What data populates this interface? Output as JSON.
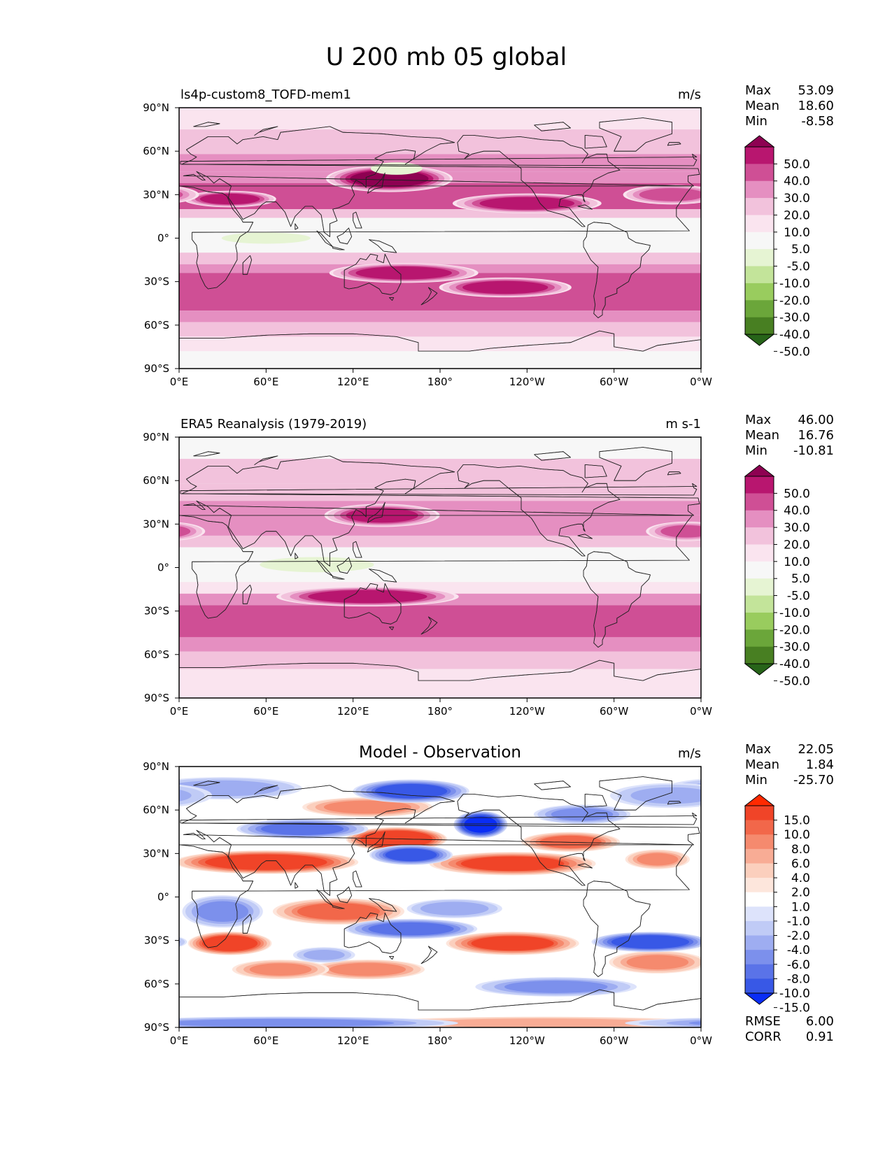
{
  "figure": {
    "title": "U 200 mb 05 global"
  },
  "panels": [
    {
      "id": "model",
      "left_title": "ls4p-custom8_TOFD-mem1",
      "center_title": "",
      "units": "m/s",
      "stats": [
        {
          "label": "Max",
          "value": "53.09"
        },
        {
          "label": "Mean",
          "value": "18.60"
        },
        {
          "label": "Min",
          "value": "-8.58"
        }
      ],
      "colorbar": {
        "labels": [
          "50.0",
          "40.0",
          "30.0",
          "20.0",
          "10.0",
          "5.0",
          "-5.0",
          "-10.0",
          "-20.0",
          "-30.0",
          "-40.0",
          "-50.0"
        ],
        "colors": [
          "#8e0152",
          "#b8166f",
          "#cf4f95",
          "#e58fc1",
          "#f2c2dc",
          "#fae4ef",
          "#f7f7f7",
          "#e6f4d3",
          "#c3e49a",
          "#99cc5e",
          "#6ba63a",
          "#487f22",
          "#276419"
        ],
        "extend": "both"
      },
      "footer": []
    },
    {
      "id": "obs",
      "left_title": "ERA5 Reanalysis (1979-2019)",
      "center_title": "",
      "units": "m s-1",
      "stats": [
        {
          "label": "Max",
          "value": "46.00"
        },
        {
          "label": "Mean",
          "value": "16.76"
        },
        {
          "label": "Min",
          "value": "-10.81"
        }
      ],
      "colorbar": {
        "labels": [
          "50.0",
          "40.0",
          "30.0",
          "20.0",
          "10.0",
          "5.0",
          "-5.0",
          "-10.0",
          "-20.0",
          "-30.0",
          "-40.0",
          "-50.0"
        ],
        "colors": [
          "#8e0152",
          "#b8166f",
          "#cf4f95",
          "#e58fc1",
          "#f2c2dc",
          "#fae4ef",
          "#f7f7f7",
          "#e6f4d3",
          "#c3e49a",
          "#99cc5e",
          "#6ba63a",
          "#487f22",
          "#276419"
        ],
        "extend": "both"
      },
      "footer": []
    },
    {
      "id": "diff",
      "left_title": "",
      "center_title": "Model - Observation",
      "units": "m/s",
      "stats": [
        {
          "label": "Max",
          "value": "22.05"
        },
        {
          "label": "Mean",
          "value": "1.84"
        },
        {
          "label": "Min",
          "value": "-25.70"
        }
      ],
      "colorbar": {
        "labels": [
          "15.0",
          "10.0",
          "8.0",
          "6.0",
          "4.0",
          "2.0",
          "1.0",
          "-1.0",
          "-2.0",
          "-4.0",
          "-6.0",
          "-8.0",
          "-10.0",
          "-15.0"
        ],
        "colors": [
          "#ff2a00",
          "#f04428",
          "#f2674a",
          "#f58a6e",
          "#f8ac95",
          "#fbcfbd",
          "#fde6dc",
          "#ffffff",
          "#dde3fb",
          "#c0cbf6",
          "#9eadf1",
          "#7c90ec",
          "#5a73e8",
          "#3858e6",
          "#0a2df5"
        ],
        "extend": "both"
      },
      "footer": [
        {
          "label": "RMSE",
          "value": "6.00"
        },
        {
          "label": "CORR",
          "value": "0.91"
        }
      ]
    }
  ],
  "chart_data": {
    "type": "heatmap",
    "title": "U 200 mb 05 global",
    "xlabel": "",
    "ylabel": "",
    "x_ticks": [
      "0°E",
      "60°E",
      "120°E",
      "180°",
      "120°W",
      "60°W",
      "0°W"
    ],
    "y_ticks": [
      "90°N",
      "60°N",
      "30°N",
      "0°",
      "30°S",
      "60°S",
      "90°S"
    ],
    "xlim": [
      0,
      360
    ],
    "ylim": [
      -90,
      90
    ],
    "panels": [
      {
        "name": "ls4p-custom8_TOFD-mem1",
        "units": "m/s",
        "zonal_bands": [
          {
            "lat": [
              75,
              90
            ],
            "value": 5
          },
          {
            "lat": [
              58,
              75
            ],
            "value": 10
          },
          {
            "lat": [
              46,
              58
            ],
            "value": 20
          },
          {
            "lat": [
              38,
              46
            ],
            "value": 25
          },
          {
            "lat": [
              20,
              38
            ],
            "value": 30
          },
          {
            "lat": [
              14,
              20
            ],
            "value": 10
          },
          {
            "lat": [
              -10,
              14
            ],
            "value": 0
          },
          {
            "lat": [
              -18,
              -10
            ],
            "value": 10
          },
          {
            "lat": [
              -24,
              -18
            ],
            "value": 20
          },
          {
            "lat": [
              -50,
              -24
            ],
            "value": 35
          },
          {
            "lat": [
              -58,
              -50
            ],
            "value": 25
          },
          {
            "lat": [
              -68,
              -58
            ],
            "value": 15
          },
          {
            "lat": [
              -78,
              -68
            ],
            "value": 8
          },
          {
            "lat": [
              -90,
              -78
            ],
            "value": 2
          }
        ],
        "features": [
          {
            "lon": 145,
            "lat": 41,
            "lon_radius": 38,
            "lat_radius": 8,
            "value": 52
          },
          {
            "lon": 35,
            "lat": 27,
            "lon_radius": 28,
            "lat_radius": 5,
            "value": 45
          },
          {
            "lon": 240,
            "lat": 24,
            "lon_radius": 45,
            "lat_radius": 6,
            "value": 44
          },
          {
            "lon": 155,
            "lat": -24,
            "lon_radius": 45,
            "lat_radius": 6,
            "value": 45
          },
          {
            "lon": 225,
            "lat": -34,
            "lon_radius": 40,
            "lat_radius": 6,
            "value": 45
          },
          {
            "lon": 150,
            "lat": 48,
            "lon_radius": 25,
            "lat_radius": 6,
            "value": -5
          },
          {
            "lon": 60,
            "lat": 0,
            "lon_radius": 40,
            "lat_radius": 5,
            "value": -6
          },
          {
            "lon": 340,
            "lat": 30,
            "lon_radius": 30,
            "lat_radius": 6,
            "value": 35
          }
        ]
      },
      {
        "name": "ERA5 Reanalysis (1979-2019)",
        "units": "m s-1",
        "zonal_bands": [
          {
            "lat": [
              75,
              90
            ],
            "value": 3
          },
          {
            "lat": [
              58,
              75
            ],
            "value": 12
          },
          {
            "lat": [
              46,
              58
            ],
            "value": 18
          },
          {
            "lat": [
              36,
              46
            ],
            "value": 22
          },
          {
            "lat": [
              22,
              36
            ],
            "value": 28
          },
          {
            "lat": [
              14,
              22
            ],
            "value": 12
          },
          {
            "lat": [
              -10,
              14
            ],
            "value": -1
          },
          {
            "lat": [
              -18,
              -10
            ],
            "value": 8
          },
          {
            "lat": [
              -26,
              -18
            ],
            "value": 20
          },
          {
            "lat": [
              -48,
              -26
            ],
            "value": 34
          },
          {
            "lat": [
              -58,
              -48
            ],
            "value": 25
          },
          {
            "lat": [
              -70,
              -58
            ],
            "value": 15
          },
          {
            "lat": [
              -90,
              -70
            ],
            "value": 8
          }
        ],
        "features": [
          {
            "lon": 140,
            "lat": 36,
            "lon_radius": 35,
            "lat_radius": 7,
            "value": 42
          },
          {
            "lon": 130,
            "lat": -20,
            "lon_radius": 55,
            "lat_radius": 6,
            "value": 46
          },
          {
            "lon": 95,
            "lat": 2,
            "lon_radius": 45,
            "lat_radius": 6,
            "value": -8
          },
          {
            "lon": 350,
            "lat": 25,
            "lon_radius": 25,
            "lat_radius": 6,
            "value": 32
          }
        ]
      },
      {
        "name": "Model - Observation",
        "units": "m/s",
        "zonal_bands": [],
        "features": [
          {
            "lon": 60,
            "lat": 24,
            "lon_radius": 55,
            "lat_radius": 7,
            "value": 12
          },
          {
            "lon": 150,
            "lat": 40,
            "lon_radius": 30,
            "lat_radius": 7,
            "value": 14
          },
          {
            "lon": 230,
            "lat": 23,
            "lon_radius": 50,
            "lat_radius": 7,
            "value": 10
          },
          {
            "lon": 270,
            "lat": 38,
            "lon_radius": 30,
            "lat_radius": 6,
            "value": 8
          },
          {
            "lon": 130,
            "lat": 62,
            "lon_radius": 40,
            "lat_radius": 6,
            "value": 7
          },
          {
            "lon": 330,
            "lat": 26,
            "lon_radius": 20,
            "lat_radius": 6,
            "value": 6
          },
          {
            "lon": 35,
            "lat": -32,
            "lon_radius": 25,
            "lat_radius": 7,
            "value": 12
          },
          {
            "lon": 110,
            "lat": -10,
            "lon_radius": 40,
            "lat_radius": 8,
            "value": 8
          },
          {
            "lon": 230,
            "lat": -32,
            "lon_radius": 40,
            "lat_radius": 7,
            "value": 10
          },
          {
            "lon": 130,
            "lat": -50,
            "lon_radius": 35,
            "lat_radius": 6,
            "value": 7
          },
          {
            "lon": 70,
            "lat": -50,
            "lon_radius": 30,
            "lat_radius": 6,
            "value": 6
          },
          {
            "lon": 330,
            "lat": -45,
            "lon_radius": 30,
            "lat_radius": 7,
            "value": 6
          },
          {
            "lon": 250,
            "lat": -87,
            "lon_radius": 110,
            "lat_radius": 4,
            "value": 5
          },
          {
            "lon": 160,
            "lat": 73,
            "lon_radius": 35,
            "lat_radius": 7,
            "value": -10
          },
          {
            "lon": 208,
            "lat": 50,
            "lon_radius": 16,
            "lat_radius": 8,
            "value": -15
          },
          {
            "lon": 85,
            "lat": 47,
            "lon_radius": 40,
            "lat_radius": 6,
            "value": -8
          },
          {
            "lon": 160,
            "lat": 29,
            "lon_radius": 25,
            "lat_radius": 6,
            "value": -10
          },
          {
            "lon": 278,
            "lat": 57,
            "lon_radius": 30,
            "lat_radius": 6,
            "value": -6
          },
          {
            "lon": 30,
            "lat": 75,
            "lon_radius": 50,
            "lat_radius": 7,
            "value": -5
          },
          {
            "lon": 340,
            "lat": 70,
            "lon_radius": 40,
            "lat_radius": 8,
            "value": -4
          },
          {
            "lon": 30,
            "lat": -10,
            "lon_radius": 25,
            "lat_radius": 10,
            "value": -6
          },
          {
            "lon": 160,
            "lat": -22,
            "lon_radius": 40,
            "lat_radius": 6,
            "value": -9
          },
          {
            "lon": 325,
            "lat": -31,
            "lon_radius": 35,
            "lat_radius": 6,
            "value": -12
          },
          {
            "lon": 260,
            "lat": -62,
            "lon_radius": 50,
            "lat_radius": 6,
            "value": -6
          },
          {
            "lon": 190,
            "lat": -8,
            "lon_radius": 30,
            "lat_radius": 6,
            "value": -5
          },
          {
            "lon": 70,
            "lat": -87,
            "lon_radius": 110,
            "lat_radius": 4,
            "value": -6
          },
          {
            "lon": 100,
            "lat": -40,
            "lon_radius": 20,
            "lat_radius": 5,
            "value": -4
          }
        ]
      }
    ]
  }
}
